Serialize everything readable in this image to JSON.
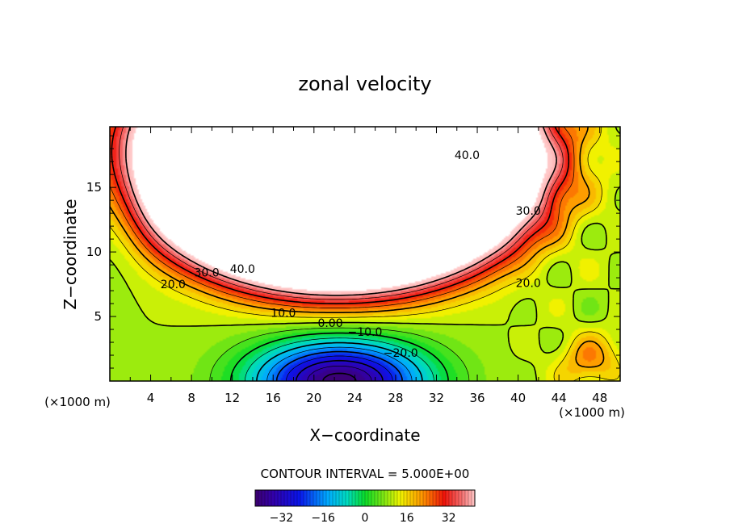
{
  "chart_data": {
    "type": "heatmap",
    "title": "zonal velocity",
    "xlabel": "X−coordinate",
    "ylabel": "Z−coordinate",
    "x_unit_left": "(×1000 m)",
    "x_unit_right": "(×1000 m)",
    "xlim": [
      0,
      50
    ],
    "ylim": [
      0,
      19.7
    ],
    "x_ticks": [
      4,
      8,
      12,
      16,
      20,
      24,
      28,
      32,
      36,
      40,
      44,
      48
    ],
    "y_ticks": [
      5,
      10,
      15
    ],
    "contour_interval_label": "CONTOUR INTERVAL = 5.000E+00",
    "contour_interval": 5,
    "contour_labels": [
      {
        "text": "40.0",
        "x": 35,
        "z": 17.5
      },
      {
        "text": "30.0",
        "x": 41,
        "z": 13.2
      },
      {
        "text": "40.0",
        "x": 13,
        "z": 8.7
      },
      {
        "text": "30.0",
        "x": 9.5,
        "z": 8.4
      },
      {
        "text": "20.0",
        "x": 6.2,
        "z": 7.5
      },
      {
        "text": "20.0",
        "x": 41,
        "z": 7.6
      },
      {
        "text": "10.0",
        "x": 17,
        "z": 5.3
      },
      {
        "text": "0.00",
        "x": 21.6,
        "z": 4.5
      },
      {
        "text": "−10.0",
        "x": 25,
        "z": 3.8
      },
      {
        "text": "−20.0",
        "x": 28.5,
        "z": 2.2
      }
    ],
    "colorbar": {
      "min": -42,
      "max": 42,
      "ticks": [
        -32,
        -16,
        0,
        16,
        32
      ],
      "tick_labels": [
        "−32",
        "−16",
        "0",
        "16",
        "32"
      ]
    },
    "field_description_values": {
      "jet_core_max": 45,
      "bottom_min": -42,
      "background": 10
    }
  }
}
